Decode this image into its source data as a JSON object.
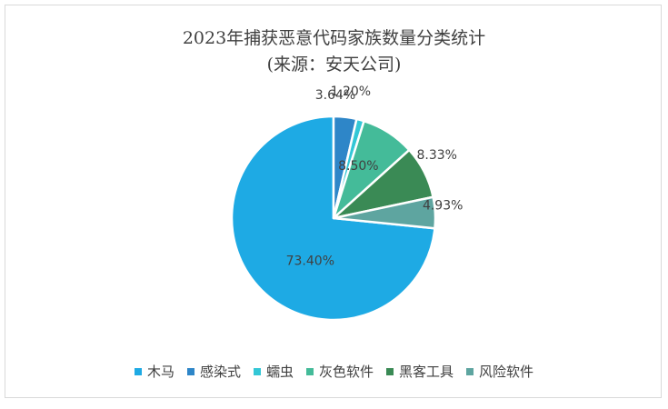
{
  "chart_data": {
    "type": "pie",
    "title": "2023年捕获恶意代码家族数量分类统计",
    "subtitle": "(来源：安天公司)",
    "categories": [
      "木马",
      "感染式",
      "蠕虫",
      "灰色软件",
      "黑客工具",
      "风险软件"
    ],
    "values": [
      73.4,
      3.64,
      1.2,
      8.5,
      8.33,
      4.93
    ],
    "labels": [
      "73.40%",
      "3.64%",
      "1.20%",
      "8.50%",
      "8.33%",
      "4.93%"
    ],
    "colors": [
      "#1eaae4",
      "#2e86c8",
      "#33c7d6",
      "#44bb99",
      "#3a8a55",
      "#5ea5a0"
    ],
    "legend_position": "bottom"
  }
}
